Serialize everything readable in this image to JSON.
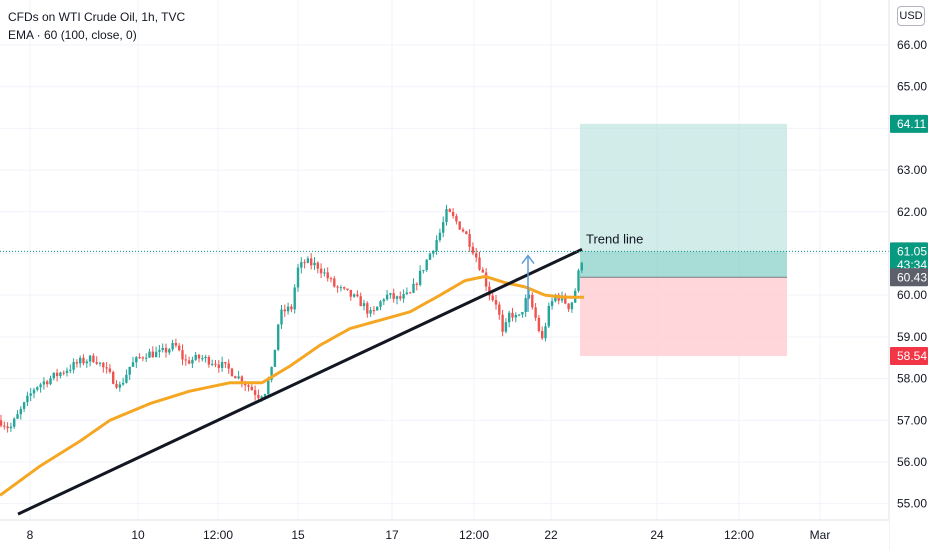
{
  "legend": {
    "symbol": "CFDs on WTI Crude Oil, 1h, TVC",
    "indicator": "EMA · 60 (100, close, 0)"
  },
  "currency_button": "USD",
  "price_tags": [
    {
      "label": "64.11",
      "value": 64.11,
      "color": "#089981"
    },
    {
      "label": "61.05",
      "value": 61.05,
      "color": "#089981"
    },
    {
      "label": "43:34",
      "value": 60.72,
      "color": "#089981"
    },
    {
      "label": "60.43",
      "value": 60.43,
      "color": "#5d606b"
    },
    {
      "label": "58.54",
      "value": 58.54,
      "color": "#f23645"
    }
  ],
  "drawings": {
    "trend_label": "Trend line",
    "position": {
      "entry": 60.43,
      "target": 64.11,
      "stop": 58.54,
      "x_start": 580,
      "x_end": 787
    }
  },
  "colors": {
    "up": "#26a69a",
    "down": "#ef5350",
    "ema": "#f5a623",
    "trend": "#131722",
    "arrow": "#5b9bd5",
    "profit_fill": "#b2dfdb",
    "loss_fill": "#ffcdd2"
  },
  "chart_data": {
    "type": "candlestick",
    "ylim": [
      54.8,
      66.6
    ],
    "yticks": [
      55,
      56,
      57,
      58,
      59,
      60,
      61,
      62,
      63,
      64,
      65,
      66
    ],
    "ytick_labels": [
      "55.00",
      "56.00",
      "57.00",
      "58.00",
      "59.00",
      "60.00",
      "61.00",
      "62.00",
      "63.00",
      "64.00",
      "65.00",
      "66.00"
    ],
    "xticks": [
      {
        "label": "8",
        "t": 30
      },
      {
        "label": "10",
        "t": 138
      },
      {
        "label": "12:00",
        "t": 218
      },
      {
        "label": "15",
        "t": 298
      },
      {
        "label": "17",
        "t": 392
      },
      {
        "label": "12:00",
        "t": 474
      },
      {
        "label": "22",
        "t": 551
      },
      {
        "label": "24",
        "t": 657
      },
      {
        "label": "12:00",
        "t": 739
      },
      {
        "label": "Mar",
        "t": 820
      }
    ],
    "price_anchors": [
      [
        0,
        57.0
      ],
      [
        10,
        56.8
      ],
      [
        20,
        57.2
      ],
      [
        35,
        57.8
      ],
      [
        50,
        58.0
      ],
      [
        65,
        58.2
      ],
      [
        80,
        58.4
      ],
      [
        95,
        58.5
      ],
      [
        105,
        58.2
      ],
      [
        120,
        57.8
      ],
      [
        130,
        58.3
      ],
      [
        145,
        58.6
      ],
      [
        160,
        58.6
      ],
      [
        175,
        58.8
      ],
      [
        185,
        58.4
      ],
      [
        200,
        58.5
      ],
      [
        215,
        58.4
      ],
      [
        230,
        58.2
      ],
      [
        245,
        57.9
      ],
      [
        258,
        57.6
      ],
      [
        265,
        57.7
      ],
      [
        272,
        58.2
      ],
      [
        278,
        59.3
      ],
      [
        282,
        59.6
      ],
      [
        292,
        59.7
      ],
      [
        297,
        60.6
      ],
      [
        305,
        60.8
      ],
      [
        318,
        60.7
      ],
      [
        325,
        60.5
      ],
      [
        335,
        60.2
      ],
      [
        350,
        60.0
      ],
      [
        362,
        59.8
      ],
      [
        372,
        59.5
      ],
      [
        385,
        60.0
      ],
      [
        398,
        59.9
      ],
      [
        410,
        60.0
      ],
      [
        420,
        60.5
      ],
      [
        430,
        61.0
      ],
      [
        440,
        61.5
      ],
      [
        447,
        62.0
      ],
      [
        455,
        61.8
      ],
      [
        465,
        61.5
      ],
      [
        475,
        61.0
      ],
      [
        483,
        60.5
      ],
      [
        490,
        60.0
      ],
      [
        497,
        59.8
      ],
      [
        503,
        59.0
      ],
      [
        510,
        59.6
      ],
      [
        518,
        59.4
      ],
      [
        528,
        60.0
      ],
      [
        535,
        59.5
      ],
      [
        542,
        58.9
      ],
      [
        548,
        59.6
      ],
      [
        555,
        60.0
      ],
      [
        563,
        59.9
      ],
      [
        570,
        59.7
      ],
      [
        575,
        60.1
      ],
      [
        580,
        60.7
      ],
      [
        584,
        61.05
      ]
    ],
    "ema_anchors": [
      [
        0,
        55.2
      ],
      [
        40,
        55.9
      ],
      [
        80,
        56.5
      ],
      [
        110,
        57.0
      ],
      [
        150,
        57.4
      ],
      [
        190,
        57.7
      ],
      [
        230,
        57.9
      ],
      [
        262,
        57.9
      ],
      [
        290,
        58.3
      ],
      [
        320,
        58.8
      ],
      [
        350,
        59.2
      ],
      [
        380,
        59.4
      ],
      [
        410,
        59.6
      ],
      [
        440,
        60.0
      ],
      [
        465,
        60.35
      ],
      [
        485,
        60.45
      ],
      [
        505,
        60.3
      ],
      [
        525,
        60.2
      ],
      [
        545,
        60.0
      ],
      [
        565,
        59.95
      ],
      [
        584,
        59.95
      ]
    ],
    "trend_line": {
      "t1": 18,
      "p1": 54.75,
      "t2": 582,
      "p2": 61.1
    },
    "arrow": {
      "t": 528,
      "p_from": 59.6,
      "p_to": 60.95
    }
  }
}
